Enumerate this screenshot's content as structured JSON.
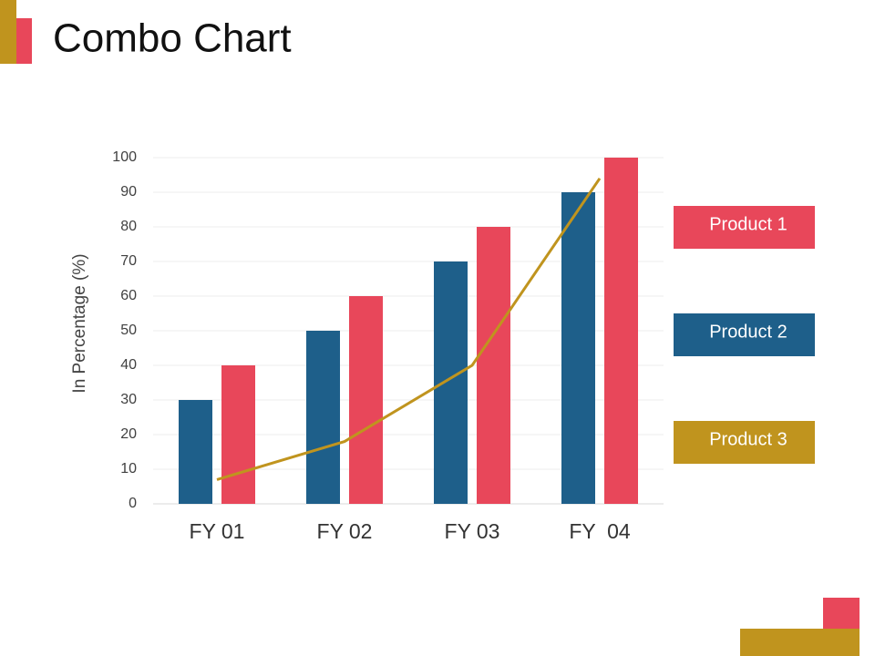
{
  "chart_data": {
    "type": "combo",
    "title": "Combo Chart",
    "y_label": "In Percentage (%)",
    "categories": [
      "FY 01",
      "FY 02",
      "FY 03",
      "FY  04"
    ],
    "series": [
      {
        "name": "Product 1",
        "type": "bar",
        "color": "#e8475a",
        "values": [
          40,
          60,
          80,
          100
        ]
      },
      {
        "name": "Product 2",
        "type": "bar",
        "color": "#1e5f8a",
        "values": [
          30,
          50,
          70,
          90
        ]
      },
      {
        "name": "Product 3",
        "type": "line",
        "color": "#c0941e",
        "values": [
          7,
          18,
          40,
          94
        ]
      }
    ],
    "ylim": [
      0,
      100
    ],
    "yticks": [
      0,
      10,
      20,
      30,
      40,
      50,
      60,
      70,
      80,
      90,
      100
    ],
    "grid": true
  }
}
